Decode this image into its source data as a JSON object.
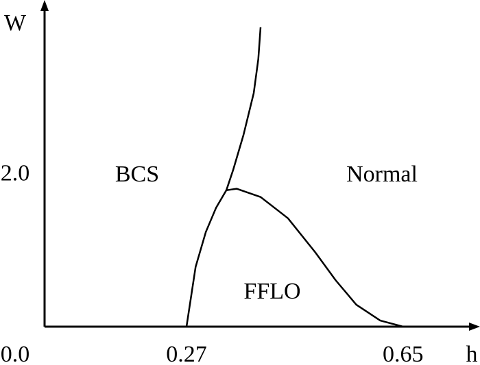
{
  "chart_data": {
    "type": "line",
    "x_label": "h",
    "y_label": "W",
    "origin_label": "0.0",
    "xlim": [
      0.021,
      0.785
    ],
    "ylim": [
      0,
      4.31
    ],
    "xticks": [
      0.27,
      0.65
    ],
    "yticks": [
      {
        "value": 2.0,
        "label": "2.0"
      }
    ],
    "grid": false,
    "annotations": [
      "BCS",
      "Normal",
      "FFLO"
    ],
    "series": [
      {
        "color": "#000000",
        "x": [
          0.27,
          0.286,
          0.304,
          0.322,
          0.34,
          0.352,
          0.37,
          0.388,
          0.396,
          0.4
        ],
        "values": [
          0,
          0.79,
          1.25,
          1.57,
          1.8,
          2.07,
          2.53,
          3.08,
          3.53,
          3.95
        ]
      },
      {
        "color": "#000000",
        "x": [
          0.34,
          0.358,
          0.4,
          0.448,
          0.496,
          0.532,
          0.568,
          0.61,
          0.65
        ],
        "values": [
          1.8,
          1.82,
          1.71,
          1.43,
          0.98,
          0.61,
          0.29,
          0.08,
          0
        ]
      }
    ]
  }
}
